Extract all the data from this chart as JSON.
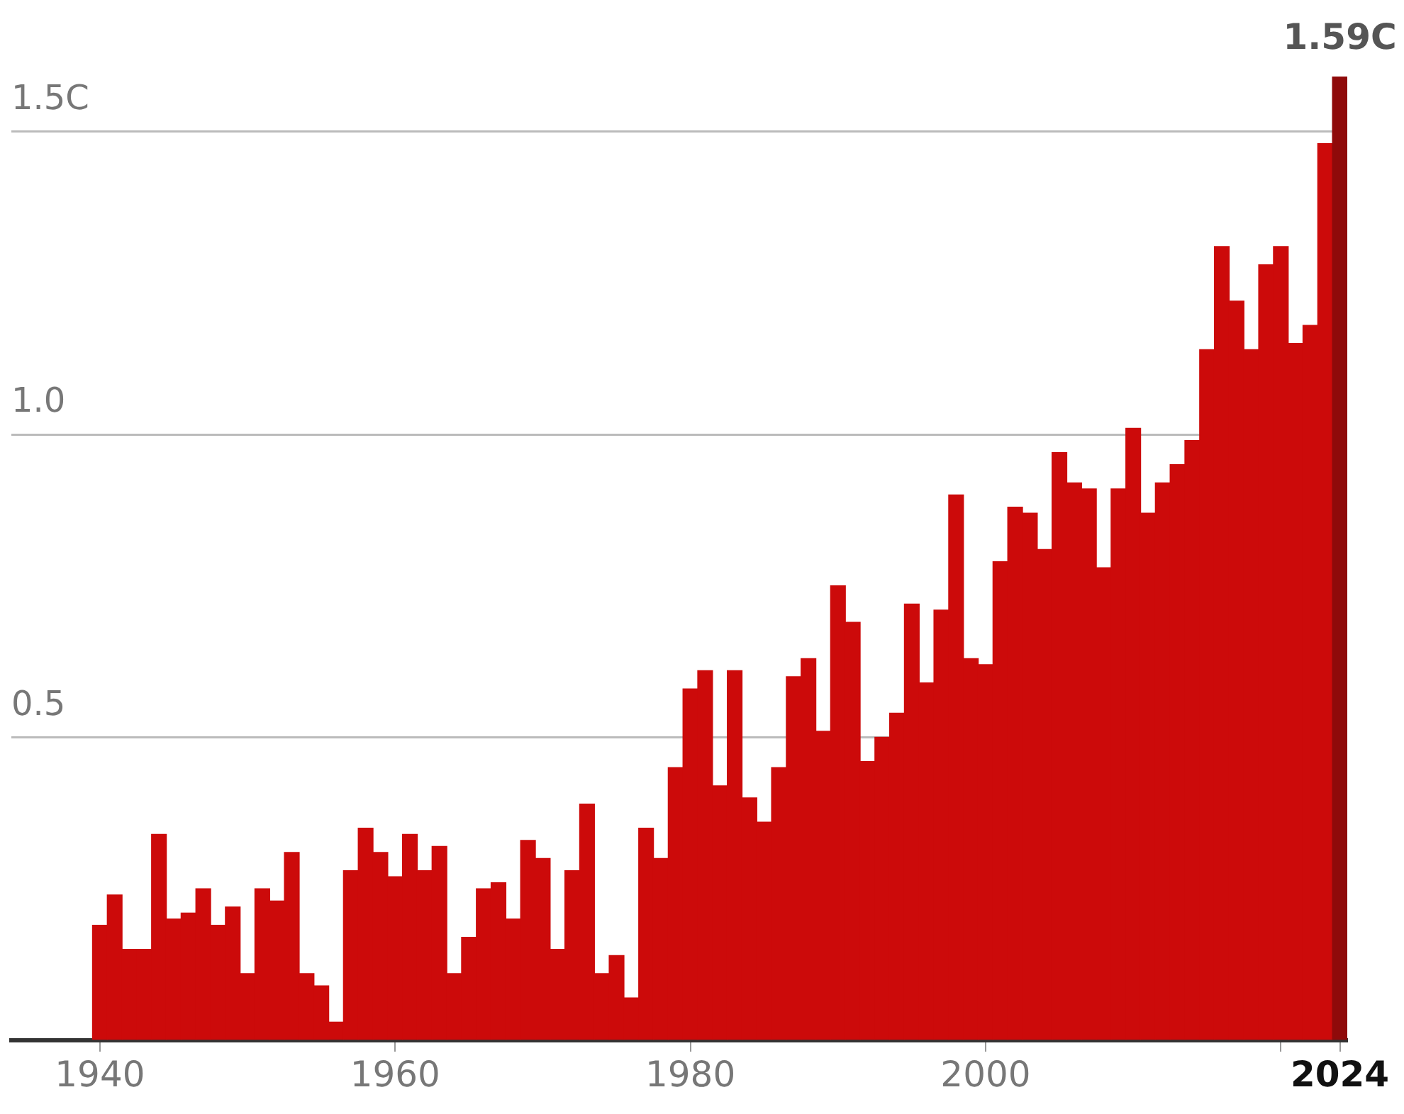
{
  "chart_data": {
    "type": "bar",
    "x": [
      1940,
      1941,
      1942,
      1943,
      1944,
      1945,
      1946,
      1947,
      1948,
      1949,
      1950,
      1951,
      1952,
      1953,
      1954,
      1955,
      1956,
      1957,
      1958,
      1959,
      1960,
      1961,
      1962,
      1963,
      1964,
      1965,
      1966,
      1967,
      1968,
      1969,
      1970,
      1971,
      1972,
      1973,
      1974,
      1975,
      1976,
      1977,
      1978,
      1979,
      1980,
      1981,
      1982,
      1983,
      1984,
      1985,
      1986,
      1987,
      1988,
      1989,
      1990,
      1991,
      1992,
      1993,
      1994,
      1995,
      1996,
      1997,
      1998,
      1999,
      2000,
      2001,
      2002,
      2003,
      2004,
      2005,
      2006,
      2007,
      2008,
      2009,
      2010,
      2011,
      2012,
      2013,
      2014,
      2015,
      2016,
      2017,
      2018,
      2019,
      2020,
      2021,
      2022,
      2023,
      2024
    ],
    "values": [
      0.19,
      0.24,
      0.15,
      0.15,
      0.34,
      0.2,
      0.21,
      0.25,
      0.19,
      0.22,
      0.11,
      0.25,
      0.23,
      0.31,
      0.11,
      0.09,
      0.03,
      0.28,
      0.35,
      0.31,
      0.27,
      0.34,
      0.28,
      0.32,
      0.11,
      0.17,
      0.25,
      0.26,
      0.2,
      0.33,
      0.3,
      0.15,
      0.28,
      0.39,
      0.11,
      0.14,
      0.07,
      0.35,
      0.3,
      0.45,
      0.58,
      0.61,
      0.42,
      0.61,
      0.4,
      0.36,
      0.45,
      0.6,
      0.63,
      0.51,
      0.75,
      0.69,
      0.46,
      0.5,
      0.54,
      0.72,
      0.59,
      0.71,
      0.9,
      0.63,
      0.62,
      0.79,
      0.88,
      0.87,
      0.81,
      0.97,
      0.92,
      0.91,
      0.78,
      0.91,
      1.01,
      0.87,
      0.92,
      0.95,
      0.99,
      1.14,
      1.31,
      1.22,
      1.14,
      1.28,
      1.31,
      1.15,
      1.18,
      1.48,
      1.59
    ],
    "colors": [
      "#cc0a0a",
      "#cc0a0a",
      "#cc0a0a",
      "#cc0a0a",
      "#cc0a0a",
      "#cc0a0a",
      "#cc0a0a",
      "#cc0a0a",
      "#cc0a0a",
      "#cc0a0a",
      "#cc0a0a",
      "#cc0a0a",
      "#cc0a0a",
      "#cc0a0a",
      "#cc0a0a",
      "#cc0a0a",
      "#cc0a0a",
      "#cc0a0a",
      "#cc0a0a",
      "#cc0a0a",
      "#cc0a0a",
      "#cc0a0a",
      "#cc0a0a",
      "#cc0a0a",
      "#cc0a0a",
      "#cc0a0a",
      "#cc0a0a",
      "#cc0a0a",
      "#cc0a0a",
      "#cc0a0a",
      "#cc0a0a",
      "#cc0a0a",
      "#cc0a0a",
      "#cc0a0a",
      "#cc0a0a",
      "#cc0a0a",
      "#cc0a0a",
      "#cc0a0a",
      "#cc0a0a",
      "#cc0a0a",
      "#cc0a0a",
      "#cc0a0a",
      "#cc0a0a",
      "#cc0a0a",
      "#cc0a0a",
      "#cc0a0a",
      "#cc0a0a",
      "#cc0a0a",
      "#cc0a0a",
      "#cc0a0a",
      "#cc0a0a",
      "#cc0a0a",
      "#cc0a0a",
      "#cc0a0a",
      "#cc0a0a",
      "#cc0a0a",
      "#cc0a0a",
      "#cc0a0a",
      "#cc0a0a",
      "#cc0a0a",
      "#cc0a0a",
      "#cc0a0a",
      "#cc0a0a",
      "#cc0a0a",
      "#cc0a0a",
      "#cc0a0a",
      "#cc0a0a",
      "#cc0a0a",
      "#cc0a0a",
      "#cc0a0a",
      "#cc0a0a",
      "#cc0a0a",
      "#cc0a0a",
      "#cc0a0a",
      "#cc0a0a",
      "#cc0a0a",
      "#cc0a0a",
      "#cc0a0a",
      "#cc0a0a",
      "#cc0a0a",
      "#cc0a0a",
      "#cc0a0a",
      "#cc0a0a",
      "#cc0a0a",
      "#8f0a0a"
    ],
    "xlim": [
      1934,
      2024.5
    ],
    "xticks": [
      1940,
      1960,
      1980,
      2000,
      {
        "value": 2020,
        "label": null
      },
      2024
    ],
    "yticks": [
      {
        "value": 0,
        "label": null
      },
      {
        "value": 0.5,
        "label": "0.5"
      },
      {
        "value": 1,
        "label": "1.0"
      },
      {
        "value": 1.5,
        "label": "1.5C"
      }
    ],
    "ylim": [
      0,
      1.6
    ],
    "grid": "y",
    "annotations": [
      {
        "text": "1.59C",
        "x": 2024,
        "y": 1.59
      }
    ]
  }
}
